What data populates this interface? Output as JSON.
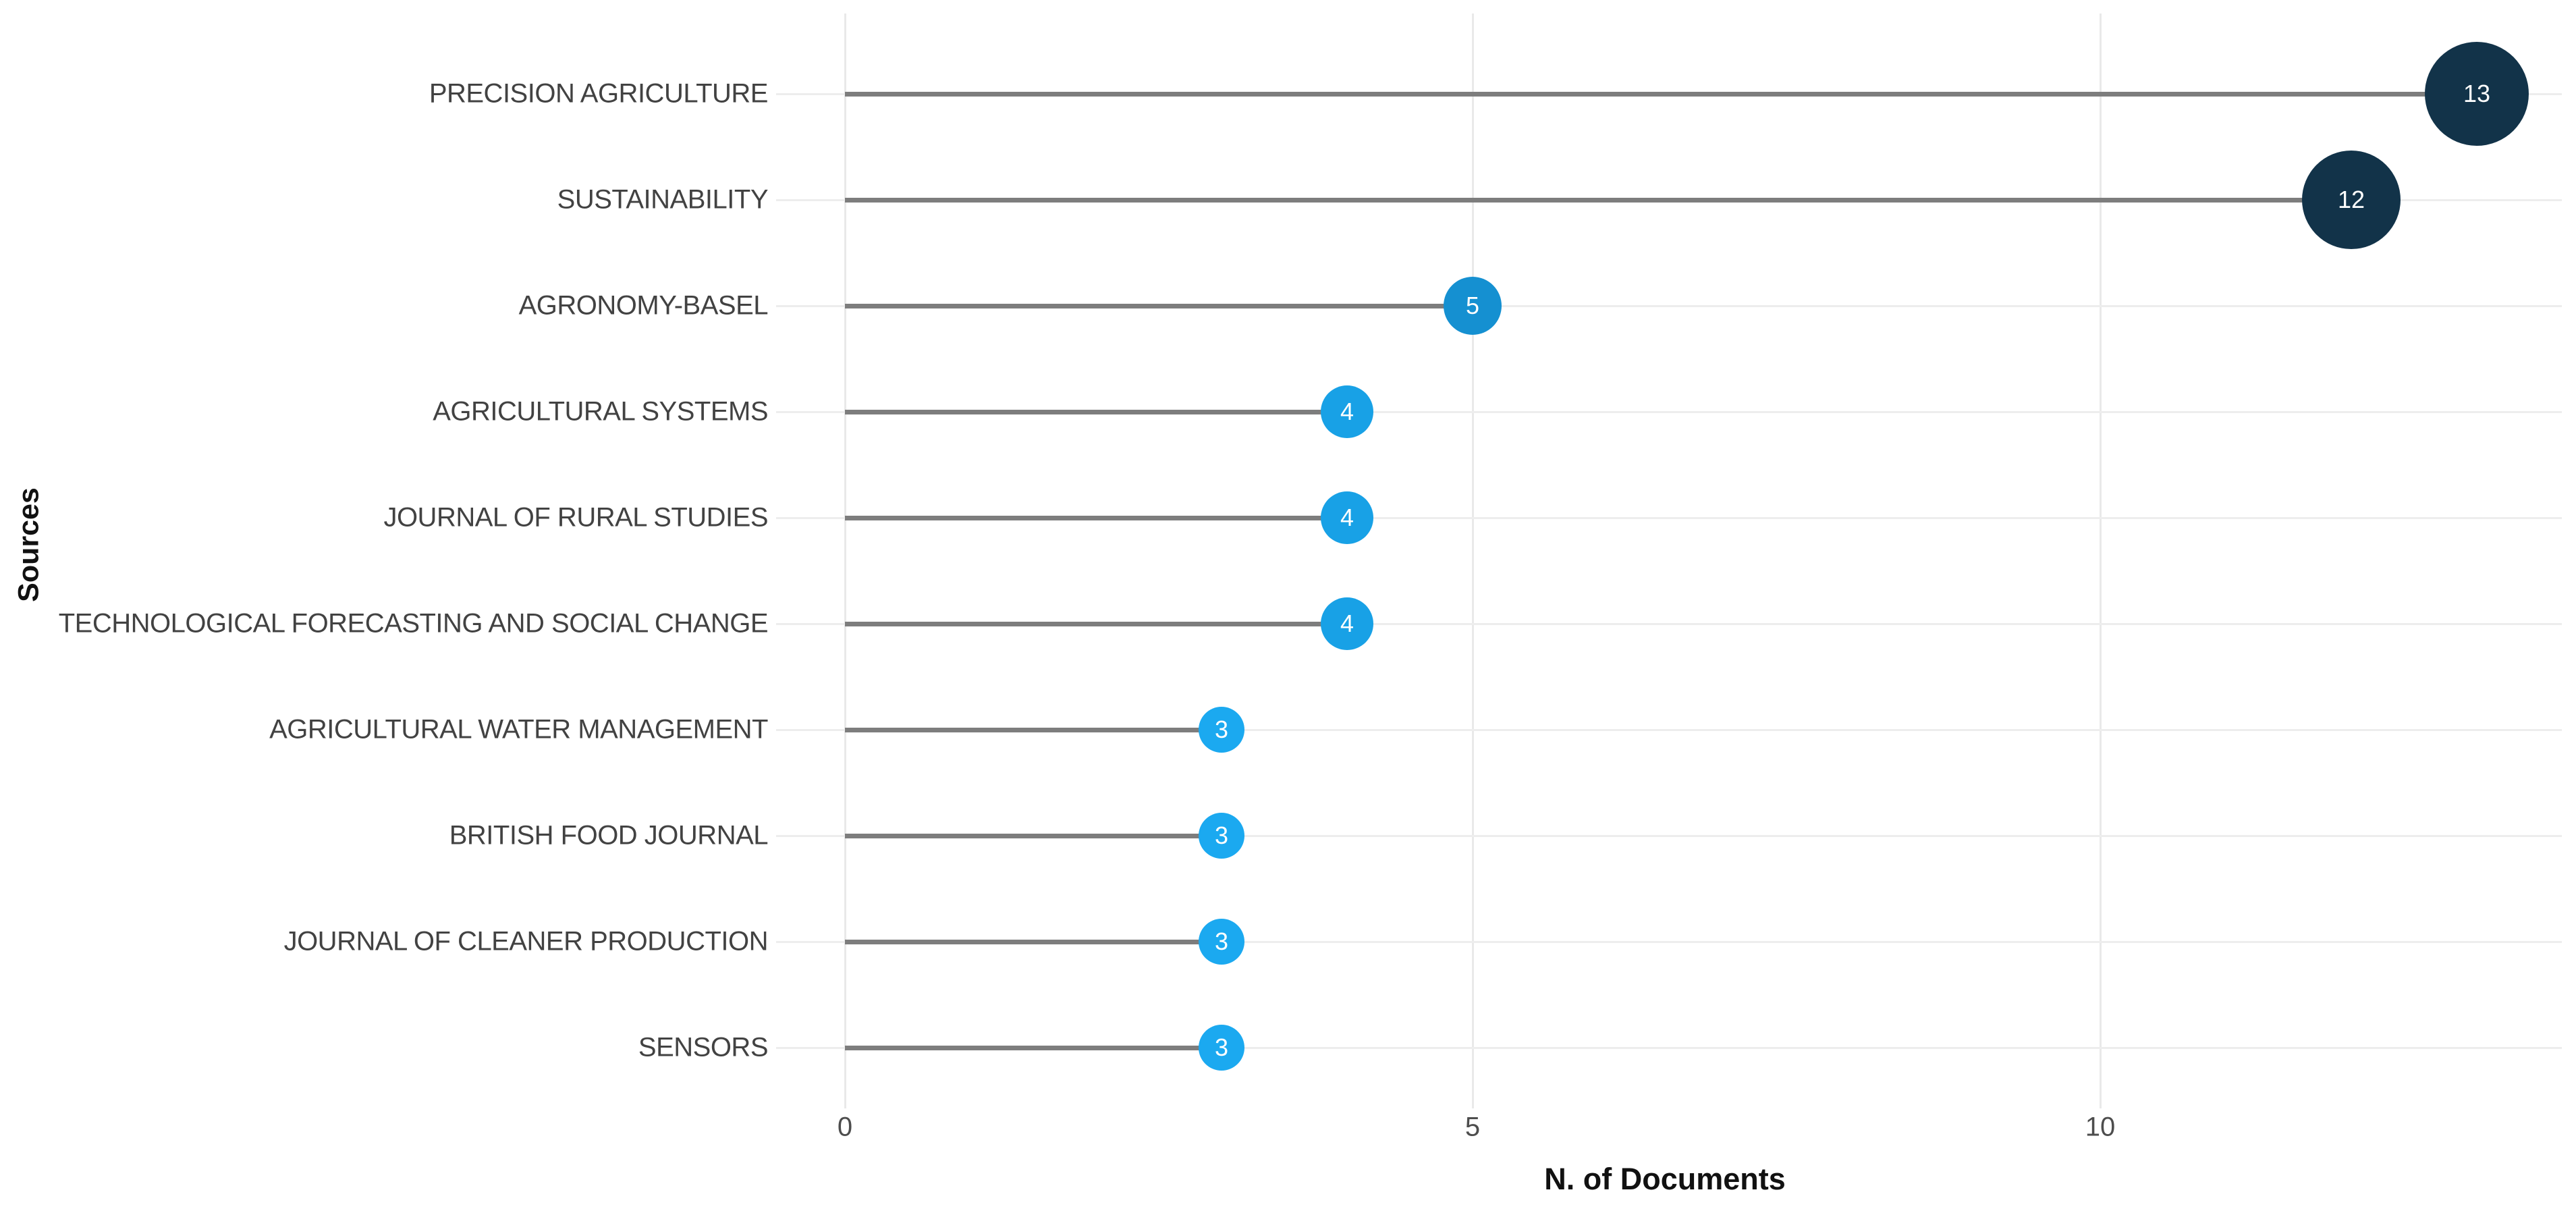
{
  "page": {
    "background": "#ffffff"
  },
  "chart_data": {
    "type": "scatter",
    "variant": "horizontal-lollipop",
    "title": "",
    "xlabel": "N. of Documents",
    "ylabel": "Sources",
    "xlim": [
      0,
      13.7
    ],
    "xticks": [
      "0",
      "5",
      "10"
    ],
    "xtick_values": [
      0,
      5,
      10
    ],
    "grid": "vertical gridlines at ticks plus faint full-width horizontal row lines",
    "legend": "none",
    "categories": [
      "PRECISION AGRICULTURE",
      "SUSTAINABILITY",
      "AGRONOMY-BASEL",
      "AGRICULTURAL SYSTEMS",
      "JOURNAL OF RURAL STUDIES",
      "TECHNOLOGICAL FORECASTING AND SOCIAL CHANGE",
      "AGRICULTURAL WATER MANAGEMENT",
      "BRITISH FOOD JOURNAL",
      "JOURNAL OF CLEANER PRODUCTION",
      "SENSORS"
    ],
    "values": [
      13,
      12,
      5,
      4,
      4,
      4,
      3,
      3,
      3,
      3
    ],
    "points": [
      {
        "label": "PRECISION AGRICULTURE",
        "value": 13,
        "color": "#123349",
        "diameter": 154
      },
      {
        "label": "SUSTAINABILITY",
        "value": 12,
        "color": "#123349",
        "diameter": 146
      },
      {
        "label": "AGRONOMY-BASEL",
        "value": 5,
        "color": "#1590d1",
        "diameter": 86
      },
      {
        "label": "AGRICULTURAL SYSTEMS",
        "value": 4,
        "color": "#18a1e6",
        "diameter": 78
      },
      {
        "label": "JOURNAL OF RURAL STUDIES",
        "value": 4,
        "color": "#18a1e6",
        "diameter": 78
      },
      {
        "label": "TECHNOLOGICAL FORECASTING AND SOCIAL CHANGE",
        "value": 4,
        "color": "#18a1e6",
        "diameter": 78
      },
      {
        "label": "AGRICULTURAL WATER MANAGEMENT",
        "value": 3,
        "color": "#1ba9f0",
        "diameter": 68
      },
      {
        "label": "BRITISH FOOD JOURNAL",
        "value": 3,
        "color": "#1ba9f0",
        "diameter": 68
      },
      {
        "label": "JOURNAL OF CLEANER PRODUCTION",
        "value": 3,
        "color": "#1ba9f0",
        "diameter": 68
      },
      {
        "label": "SENSORS",
        "value": 3,
        "color": "#1ba9f0",
        "diameter": 68
      }
    ],
    "colors": {
      "stem": "#7d7d7d",
      "row_line": "#ededed",
      "gridline": "#e9e9e9",
      "category_label_text": "#424242",
      "tick_text": "#4d4d4d",
      "axis_title_text": "#111111",
      "point_value_text": "#ffffff"
    }
  }
}
